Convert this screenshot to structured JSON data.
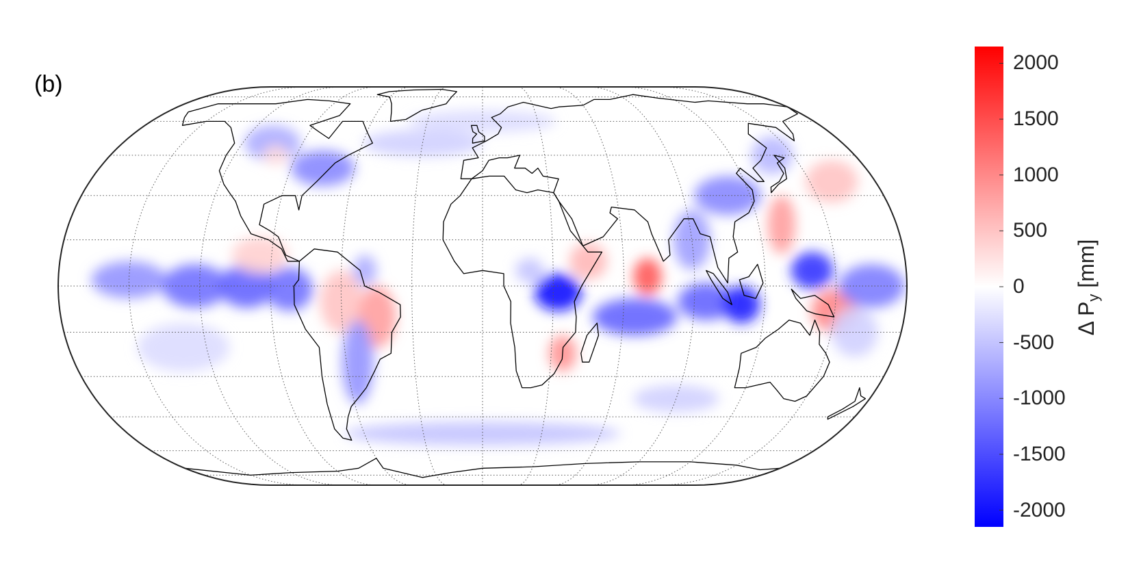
{
  "figure": {
    "panel_label": "(b)"
  },
  "map": {
    "projection": "Eckert IV",
    "graticule": "dotted",
    "graticule_step_lon_deg": 30,
    "graticule_step_lat_deg": 15,
    "coastlines": true
  },
  "colorbar": {
    "label_main": "Δ P",
    "label_sub": "y",
    "label_unit": "[mm]",
    "range": [
      -2150,
      2150
    ],
    "ticks": [
      "2000",
      "1500",
      "1000",
      "500",
      "0",
      "-500",
      "-1000",
      "-1500",
      "-2000"
    ],
    "tick_values": [
      2000,
      1500,
      1000,
      500,
      0,
      -500,
      -1000,
      -1500,
      -2000
    ],
    "colormap": "blue-white-red",
    "color_min": "#0000ff",
    "color_mid": "#ffffff",
    "color_max": "#ff0000"
  },
  "anomalies": [
    {
      "lon": -150,
      "lat": 2,
      "value": -900,
      "rx": 16,
      "ry": 6
    },
    {
      "lon": -122,
      "lat": 0,
      "value": -1200,
      "rx": 14,
      "ry": 7
    },
    {
      "lon": -100,
      "lat": 0,
      "value": -1300,
      "rx": 12,
      "ry": 7
    },
    {
      "lon": -82,
      "lat": -1,
      "value": -1200,
      "rx": 10,
      "ry": 7
    },
    {
      "lon": -95,
      "lat": 10,
      "value": 400,
      "rx": 12,
      "ry": 6
    },
    {
      "lon": -60,
      "lat": -5,
      "value": 500,
      "rx": 9,
      "ry": 10
    },
    {
      "lon": -45,
      "lat": -10,
      "value": 800,
      "rx": 8,
      "ry": 10
    },
    {
      "lon": -55,
      "lat": -25,
      "value": -900,
      "rx": 7,
      "ry": 14
    },
    {
      "lon": -50,
      "lat": 5,
      "value": -700,
      "rx": 5,
      "ry": 5
    },
    {
      "lon": -75,
      "lat": 40,
      "value": -1000,
      "rx": 15,
      "ry": 7
    },
    {
      "lon": -105,
      "lat": 50,
      "value": -700,
      "rx": 14,
      "ry": 8
    },
    {
      "lon": -30,
      "lat": 50,
      "value": -400,
      "rx": 30,
      "ry": 6
    },
    {
      "lon": 0,
      "lat": 60,
      "value": -300,
      "rx": 40,
      "ry": 6
    },
    {
      "lon": 20,
      "lat": 5,
      "value": -500,
      "rx": 6,
      "ry": 4
    },
    {
      "lon": 32,
      "lat": -2,
      "value": -2000,
      "rx": 10,
      "ry": 6
    },
    {
      "lon": 35,
      "lat": -22,
      "value": 900,
      "rx": 6,
      "ry": 6
    },
    {
      "lon": 45,
      "lat": 8,
      "value": 600,
      "rx": 8,
      "ry": 6
    },
    {
      "lon": 70,
      "lat": 3,
      "value": 1400,
      "rx": 6,
      "ry": 6
    },
    {
      "lon": 65,
      "lat": -10,
      "value": -1300,
      "rx": 18,
      "ry": 6
    },
    {
      "lon": 90,
      "lat": 15,
      "value": -800,
      "rx": 8,
      "ry": 10
    },
    {
      "lon": 95,
      "lat": -5,
      "value": -1300,
      "rx": 12,
      "ry": 6
    },
    {
      "lon": 110,
      "lat": -6,
      "value": -1900,
      "rx": 8,
      "ry": 6
    },
    {
      "lon": 110,
      "lat": 30,
      "value": -1000,
      "rx": 15,
      "ry": 7
    },
    {
      "lon": 130,
      "lat": 20,
      "value": 800,
      "rx": 6,
      "ry": 10
    },
    {
      "lon": 140,
      "lat": 5,
      "value": -1700,
      "rx": 9,
      "ry": 6
    },
    {
      "lon": 150,
      "lat": -8,
      "value": 1000,
      "rx": 10,
      "ry": 7
    },
    {
      "lon": 165,
      "lat": 0,
      "value": -1100,
      "rx": 14,
      "ry": 7
    },
    {
      "lon": 140,
      "lat": 45,
      "value": -600,
      "rx": 10,
      "ry": 8
    },
    {
      "lon": 160,
      "lat": 35,
      "value": 500,
      "rx": 12,
      "ry": 8
    },
    {
      "lon": 0,
      "lat": -52,
      "value": -500,
      "rx": 70,
      "ry": 5
    },
    {
      "lon": 90,
      "lat": -38,
      "value": -400,
      "rx": 20,
      "ry": 5
    },
    {
      "lon": 160,
      "lat": -15,
      "value": -400,
      "rx": 10,
      "ry": 8
    },
    {
      "lon": -130,
      "lat": -20,
      "value": -300,
      "rx": 20,
      "ry": 8
    },
    {
      "lon": -100,
      "lat": 45,
      "value": 300,
      "rx": 6,
      "ry": 4
    }
  ],
  "coast_polygons": [
    {
      "name": "north-america",
      "points": [
        [
          -168,
          65
        ],
        [
          -160,
          70
        ],
        [
          -140,
          70
        ],
        [
          -125,
          70
        ],
        [
          -110,
          73
        ],
        [
          -95,
          72
        ],
        [
          -80,
          70
        ],
        [
          -80,
          63
        ],
        [
          -92,
          58
        ],
        [
          -85,
          55
        ],
        [
          -78,
          52
        ],
        [
          -76,
          60
        ],
        [
          -65,
          60
        ],
        [
          -60,
          55
        ],
        [
          -55,
          50
        ],
        [
          -65,
          45
        ],
        [
          -70,
          42
        ],
        [
          -76,
          35
        ],
        [
          -81,
          30
        ],
        [
          -81,
          25
        ],
        [
          -84,
          30
        ],
        [
          -90,
          30
        ],
        [
          -97,
          27
        ],
        [
          -97,
          20
        ],
        [
          -92,
          18
        ],
        [
          -88,
          16
        ],
        [
          -84,
          10
        ],
        [
          -78,
          8
        ],
        [
          -83,
          8
        ],
        [
          -86,
          12
        ],
        [
          -92,
          15
        ],
        [
          -100,
          17
        ],
        [
          -106,
          23
        ],
        [
          -110,
          28
        ],
        [
          -114,
          31
        ],
        [
          -118,
          34
        ],
        [
          -123,
          39
        ],
        [
          -124,
          45
        ],
        [
          -124,
          50
        ],
        [
          -133,
          57
        ],
        [
          -140,
          60
        ],
        [
          -150,
          60
        ],
        [
          -160,
          58
        ],
        [
          -165,
          62
        ],
        [
          -168,
          65
        ]
      ]
    },
    {
      "name": "greenland",
      "points": [
        [
          -50,
          60
        ],
        [
          -42,
          61
        ],
        [
          -35,
          66
        ],
        [
          -22,
          70
        ],
        [
          -20,
          75
        ],
        [
          -18,
          80
        ],
        [
          -30,
          83
        ],
        [
          -50,
          82
        ],
        [
          -65,
          80
        ],
        [
          -70,
          77
        ],
        [
          -60,
          75
        ],
        [
          -55,
          70
        ],
        [
          -52,
          65
        ],
        [
          -50,
          60
        ]
      ]
    },
    {
      "name": "south-america",
      "points": [
        [
          -78,
          8
        ],
        [
          -72,
          12
        ],
        [
          -62,
          11
        ],
        [
          -52,
          5
        ],
        [
          -50,
          0
        ],
        [
          -44,
          -2
        ],
        [
          -35,
          -6
        ],
        [
          -35,
          -10
        ],
        [
          -39,
          -15
        ],
        [
          -40,
          -22
        ],
        [
          -45,
          -24
        ],
        [
          -48,
          -28
        ],
        [
          -53,
          -34
        ],
        [
          -58,
          -38
        ],
        [
          -62,
          -41
        ],
        [
          -65,
          -45
        ],
        [
          -68,
          -50
        ],
        [
          -68,
          -55
        ],
        [
          -72,
          -54
        ],
        [
          -74,
          -50
        ],
        [
          -73,
          -40
        ],
        [
          -72,
          -30
        ],
        [
          -71,
          -20
        ],
        [
          -76,
          -14
        ],
        [
          -80,
          -6
        ],
        [
          -80,
          0
        ],
        [
          -78,
          2
        ],
        [
          -78,
          8
        ]
      ]
    },
    {
      "name": "eurasia",
      "points": [
        [
          -10,
          36
        ],
        [
          -9,
          43
        ],
        [
          -2,
          44
        ],
        [
          -5,
          48
        ],
        [
          2,
          51
        ],
        [
          8,
          54
        ],
        [
          10,
          57
        ],
        [
          5,
          62
        ],
        [
          10,
          64
        ],
        [
          15,
          68
        ],
        [
          25,
          71
        ],
        [
          40,
          67
        ],
        [
          45,
          68
        ],
        [
          60,
          69
        ],
        [
          70,
          73
        ],
        [
          80,
          73
        ],
        [
          100,
          77
        ],
        [
          112,
          74
        ],
        [
          130,
          71
        ],
        [
          140,
          72
        ],
        [
          160,
          70
        ],
        [
          170,
          70
        ],
        [
          180,
          68
        ],
        [
          178,
          64
        ],
        [
          163,
          60
        ],
        [
          160,
          54
        ],
        [
          157,
          51
        ],
        [
          155,
          57
        ],
        [
          143,
          59
        ],
        [
          137,
          54
        ],
        [
          140,
          48
        ],
        [
          133,
          43
        ],
        [
          127,
          40
        ],
        [
          129,
          35
        ],
        [
          126,
          35
        ],
        [
          121,
          40
        ],
        [
          118,
          38
        ],
        [
          122,
          32
        ],
        [
          121,
          28
        ],
        [
          117,
          24
        ],
        [
          110,
          21
        ],
        [
          108,
          16
        ],
        [
          109,
          11
        ],
        [
          105,
          9
        ],
        [
          104,
          1
        ],
        [
          100,
          6
        ],
        [
          98,
          16
        ],
        [
          94,
          17
        ],
        [
          92,
          22
        ],
        [
          88,
          22
        ],
        [
          80,
          15
        ],
        [
          80,
          10
        ],
        [
          77,
          8
        ],
        [
          73,
          17
        ],
        [
          72,
          21
        ],
        [
          67,
          25
        ],
        [
          57,
          26
        ],
        [
          56,
          24
        ],
        [
          59,
          22
        ],
        [
          52,
          16
        ],
        [
          43,
          13
        ],
        [
          39,
          22
        ],
        [
          34,
          28
        ],
        [
          32,
          31
        ],
        [
          35,
          36
        ],
        [
          28,
          37
        ],
        [
          26,
          40
        ],
        [
          23,
          38
        ],
        [
          20,
          40
        ],
        [
          15,
          40
        ],
        [
          18,
          45
        ],
        [
          12,
          44
        ],
        [
          8,
          44
        ],
        [
          3,
          43
        ],
        [
          0,
          39
        ],
        [
          -5,
          36
        ],
        [
          -10,
          36
        ]
      ]
    },
    {
      "name": "africa",
      "points": [
        [
          -17,
          21
        ],
        [
          -17,
          15
        ],
        [
          -12,
          8
        ],
        [
          -8,
          4
        ],
        [
          0,
          5
        ],
        [
          9,
          4
        ],
        [
          9,
          0
        ],
        [
          12,
          -5
        ],
        [
          12,
          -12
        ],
        [
          14,
          -20
        ],
        [
          15,
          -28
        ],
        [
          18,
          -34
        ],
        [
          22,
          -34
        ],
        [
          27,
          -33
        ],
        [
          32,
          -29
        ],
        [
          35,
          -24
        ],
        [
          35,
          -20
        ],
        [
          40,
          -15
        ],
        [
          40,
          -10
        ],
        [
          39,
          -5
        ],
        [
          42,
          0
        ],
        [
          51,
          11
        ],
        [
          45,
          11
        ],
        [
          43,
          13
        ],
        [
          38,
          18
        ],
        [
          34,
          28
        ],
        [
          32,
          31
        ],
        [
          25,
          32
        ],
        [
          20,
          31
        ],
        [
          15,
          32
        ],
        [
          10,
          37
        ],
        [
          3,
          37
        ],
        [
          -5,
          36
        ],
        [
          -10,
          30
        ],
        [
          -14,
          27
        ],
        [
          -17,
          21
        ]
      ]
    },
    {
      "name": "australia",
      "points": [
        [
          113,
          -22
        ],
        [
          114,
          -27
        ],
        [
          115,
          -34
        ],
        [
          120,
          -34
        ],
        [
          130,
          -32
        ],
        [
          135,
          -35
        ],
        [
          140,
          -38
        ],
        [
          146,
          -39
        ],
        [
          150,
          -37
        ],
        [
          153,
          -30
        ],
        [
          153,
          -25
        ],
        [
          150,
          -22
        ],
        [
          146,
          -19
        ],
        [
          145,
          -15
        ],
        [
          142,
          -11
        ],
        [
          141,
          -16
        ],
        [
          136,
          -12
        ],
        [
          131,
          -11
        ],
        [
          127,
          -14
        ],
        [
          122,
          -17
        ],
        [
          119,
          -20
        ],
        [
          113,
          -22
        ]
      ]
    },
    {
      "name": "madagascar",
      "points": [
        [
          44,
          -25
        ],
        [
          47,
          -25
        ],
        [
          50,
          -16
        ],
        [
          49,
          -12
        ],
        [
          45,
          -16
        ],
        [
          43,
          -22
        ],
        [
          44,
          -25
        ]
      ]
    },
    {
      "name": "borneo",
      "points": [
        [
          109,
          2
        ],
        [
          111,
          -3
        ],
        [
          116,
          -4
        ],
        [
          119,
          1
        ],
        [
          117,
          7
        ],
        [
          113,
          3
        ],
        [
          109,
          2
        ]
      ]
    },
    {
      "name": "sumatra",
      "points": [
        [
          95,
          5
        ],
        [
          98,
          4
        ],
        [
          104,
          -2
        ],
        [
          106,
          -6
        ],
        [
          102,
          -4
        ],
        [
          97,
          2
        ],
        [
          95,
          5
        ]
      ]
    },
    {
      "name": "new-guinea",
      "points": [
        [
          131,
          -1
        ],
        [
          135,
          -4
        ],
        [
          141,
          -3
        ],
        [
          147,
          -6
        ],
        [
          150,
          -10
        ],
        [
          142,
          -9
        ],
        [
          138,
          -8
        ],
        [
          133,
          -4
        ],
        [
          131,
          -1
        ]
      ]
    },
    {
      "name": "japan",
      "points": [
        [
          130,
          31
        ],
        [
          135,
          34
        ],
        [
          140,
          36
        ],
        [
          142,
          40
        ],
        [
          141,
          45
        ],
        [
          145,
          44
        ],
        [
          140,
          42
        ],
        [
          140,
          38
        ],
        [
          136,
          35
        ],
        [
          131,
          33
        ],
        [
          130,
          31
        ]
      ]
    },
    {
      "name": "uk",
      "points": [
        [
          -5,
          50
        ],
        [
          1,
          51
        ],
        [
          1,
          53
        ],
        [
          -2,
          55
        ],
        [
          -3,
          58
        ],
        [
          -6,
          58
        ],
        [
          -5,
          55
        ],
        [
          -3,
          54
        ],
        [
          -5,
          52
        ],
        [
          -5,
          50
        ]
      ]
    },
    {
      "name": "new-zealand",
      "points": [
        [
          172,
          -34
        ],
        [
          175,
          -37
        ],
        [
          178,
          -38
        ],
        [
          175,
          -41
        ],
        [
          168,
          -46
        ],
        [
          167,
          -45
        ],
        [
          171,
          -42
        ],
        [
          174,
          -39
        ],
        [
          172,
          -34
        ]
      ]
    },
    {
      "name": "antarctica",
      "points": [
        [
          -180,
          -70
        ],
        [
          -150,
          -75
        ],
        [
          -120,
          -73
        ],
        [
          -90,
          -72
        ],
        [
          -75,
          -70
        ],
        [
          -60,
          -64
        ],
        [
          -60,
          -70
        ],
        [
          -40,
          -77
        ],
        [
          -20,
          -73
        ],
        [
          0,
          -70
        ],
        [
          30,
          -69
        ],
        [
          60,
          -67
        ],
        [
          90,
          -66
        ],
        [
          120,
          -66
        ],
        [
          150,
          -68
        ],
        [
          170,
          -71
        ],
        [
          180,
          -70
        ]
      ]
    }
  ]
}
